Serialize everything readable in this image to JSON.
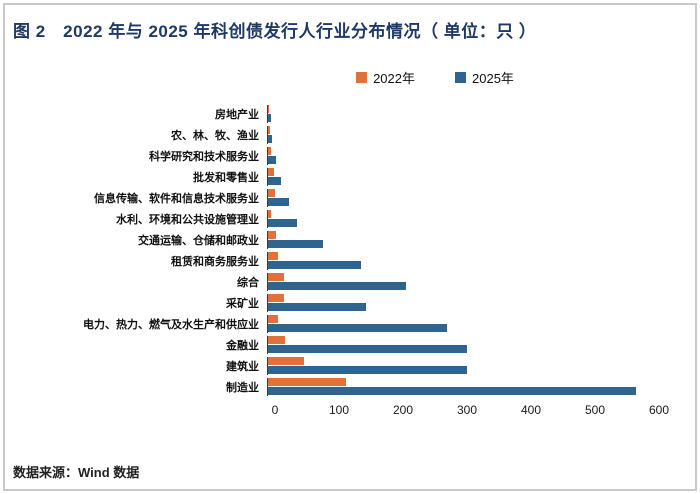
{
  "title": "图 2　2022 年与 2025 年科创债发行人行业分布情况（ 单位：只 ）",
  "source": "数据来源：Wind 数据",
  "colors": {
    "title": "#1f3864",
    "frame_border": "#c9c9c9",
    "series_2022": "#e0713a",
    "series_2025": "#2e648e"
  },
  "chart_data": {
    "type": "bar",
    "orientation": "horizontal",
    "title": "图 2　2022 年与 2025 年科创债发行人行业分布情况（ 单位：只 ）",
    "legend_position": "top",
    "grid": false,
    "xlim": [
      0,
      600
    ],
    "xticks": [
      0,
      100,
      200,
      300,
      400,
      500,
      600
    ],
    "categories": [
      "房地产业",
      "农、林、牧、渔业",
      "科学研究和技术服务业",
      "批发和零售业",
      "信息传输、软件和信息技术服务业",
      "水利、环境和公共设施管理业",
      "交通运输、仓储和邮政业",
      "租赁和商务服务业",
      "综合",
      "采矿业",
      "电力、热力、燃气及水生产和供应业",
      "金融业",
      "建筑业",
      "制造业"
    ],
    "series": [
      {
        "name": "2022年",
        "color": "#e0713a",
        "values": [
          1,
          3,
          4,
          9,
          11,
          5,
          12,
          15,
          24,
          24,
          15,
          26,
          55,
          120
        ]
      },
      {
        "name": "2025年",
        "color": "#2e648e",
        "values": [
          5,
          6,
          12,
          20,
          32,
          45,
          85,
          143,
          212,
          150,
          275,
          305,
          305,
          565
        ]
      }
    ]
  }
}
